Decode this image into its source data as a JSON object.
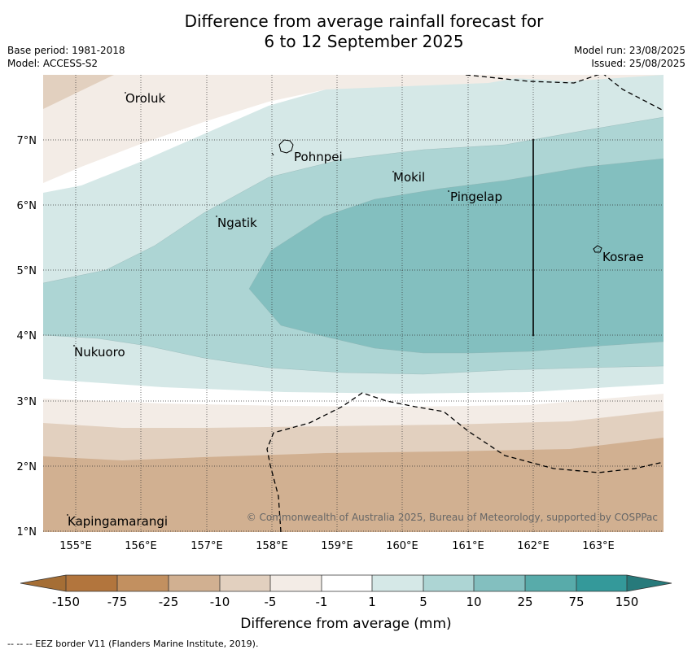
{
  "header": {
    "title_line1": "Difference from average rainfall forecast for",
    "title_line2": "6 to 12 September 2025",
    "base_period": "Base period: 1981-2018",
    "model": "Model: ACCESS-S2",
    "model_run": "Model run: 23/08/2025",
    "issued": "Issued: 25/08/2025"
  },
  "map": {
    "lat_labels": [
      "7°N",
      "6°N",
      "5°N",
      "4°N",
      "3°N",
      "2°N",
      "1°N"
    ],
    "lon_labels": [
      "155°E",
      "156°E",
      "157°E",
      "158°E",
      "159°E",
      "160°E",
      "161°E",
      "162°E",
      "163°E"
    ],
    "places": [
      {
        "name": "Oroluk"
      },
      {
        "name": "Pohnpei"
      },
      {
        "name": "Mokil"
      },
      {
        "name": "Pingelap"
      },
      {
        "name": "Ngatik"
      },
      {
        "name": "Kosrae"
      },
      {
        "name": "Nukuoro"
      },
      {
        "name": "Kapingamarangi"
      }
    ],
    "copyright": "© Commonwealth of Australia 2025, Bureau of Meteorology, supported by COSPPac"
  },
  "colorbar": {
    "title": "Difference from average (mm)",
    "ticks": [
      "-150",
      "-75",
      "-25",
      "-10",
      "-5",
      "-1",
      "1",
      "5",
      "10",
      "25",
      "75",
      "150"
    ],
    "colors": [
      "#a56e35",
      "#b2753d",
      "#c29060",
      "#d1b091",
      "#e2d0bf",
      "#f3ece6",
      "#ffffff",
      "#d5e8e7",
      "#add5d4",
      "#83bfbf",
      "#58abaa",
      "#34999a",
      "#277a7b"
    ]
  },
  "footnote": "--  --  -- EEZ border V11 (Flanders Marine Institute, 2019)."
}
